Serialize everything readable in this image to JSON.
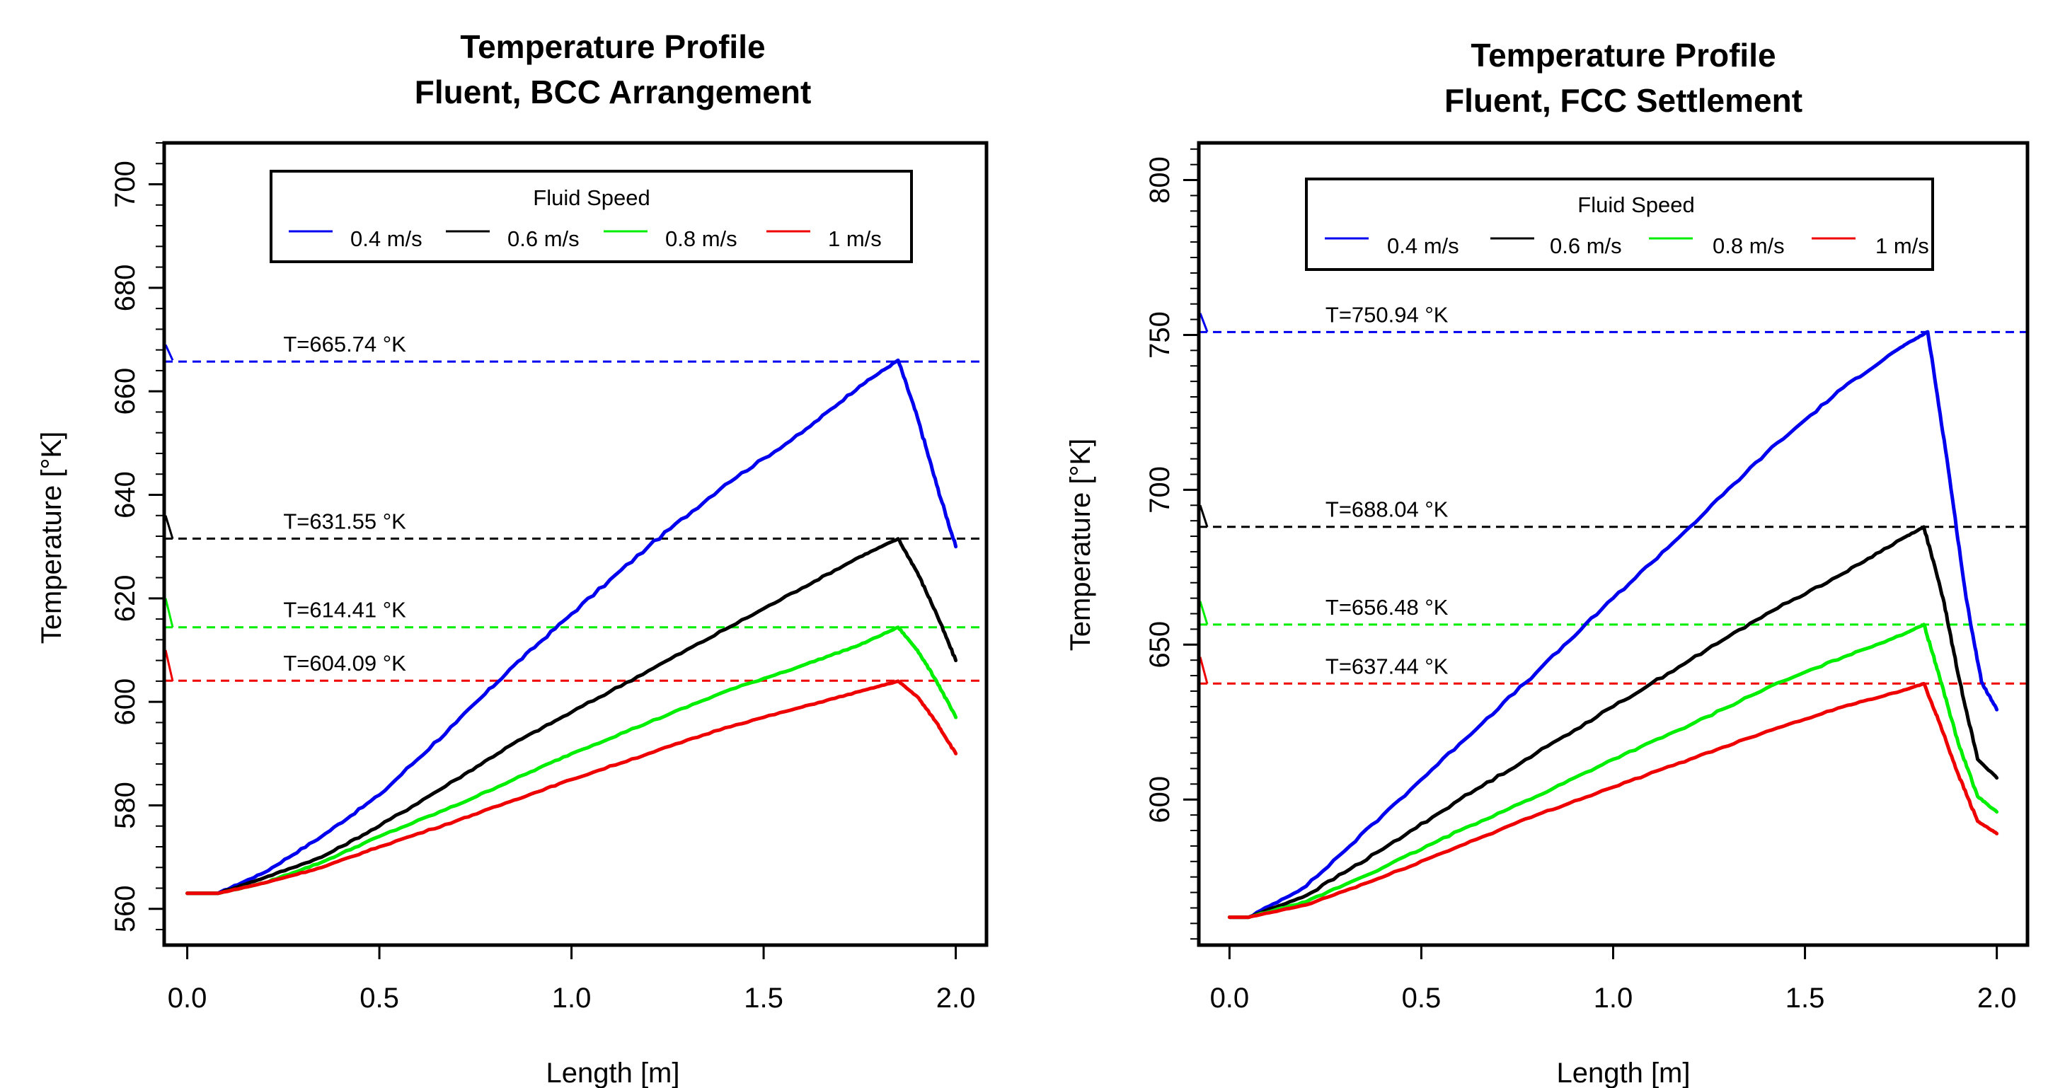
{
  "chart_data": [
    {
      "type": "line",
      "title": "Temperature Profile",
      "subtitle": "Fluent, BCC Arrangement",
      "xlabel": "Length [m]",
      "ylabel": "Temperature [°K]",
      "xlim": [
        -0.06,
        2.08
      ],
      "ylim": [
        553,
        708
      ],
      "x_ticks": [
        "0.0",
        "0.5",
        "1.0",
        "1.5",
        "2.0"
      ],
      "y_ticks": [
        "560",
        "580",
        "600",
        "620",
        "640",
        "660",
        "680",
        "700"
      ],
      "y_minor_step": 4,
      "legend": {
        "title": "Fluid Speed",
        "position": "top-center",
        "entries": [
          "0.4 m/s",
          "0.6 m/s",
          "0.8 m/s",
          "1 m/s"
        ]
      },
      "grid": false,
      "series": [
        {
          "name": "0.4 m/s",
          "color": "#0000ee",
          "x": [
            0,
            0.08,
            0.2,
            0.35,
            0.5,
            0.7,
            0.85,
            1.0,
            1.2,
            1.4,
            1.6,
            1.75,
            1.85,
            1.9,
            1.95,
            2.0
          ],
          "y": [
            563,
            563,
            567,
            574,
            582,
            596,
            607,
            617,
            630,
            642,
            652,
            661,
            666,
            655,
            642,
            630
          ]
        },
        {
          "name": "0.6 m/s",
          "color": "#000000",
          "x": [
            0,
            0.08,
            0.2,
            0.35,
            0.5,
            0.7,
            0.85,
            1.0,
            1.2,
            1.4,
            1.6,
            1.75,
            1.85,
            1.9,
            1.95,
            2.0
          ],
          "y": [
            563,
            563,
            566,
            570,
            576,
            585,
            592,
            598,
            606,
            614,
            622,
            628,
            631.5,
            625,
            617,
            608
          ]
        },
        {
          "name": "0.8 m/s",
          "color": "#00ee00",
          "x": [
            0,
            0.08,
            0.2,
            0.35,
            0.5,
            0.7,
            0.85,
            1.0,
            1.2,
            1.4,
            1.6,
            1.75,
            1.85,
            1.9,
            1.95,
            2.0
          ],
          "y": [
            563,
            563,
            565,
            569,
            574,
            580,
            585,
            590,
            596,
            602,
            607,
            611,
            614.4,
            610,
            604,
            597
          ]
        },
        {
          "name": "1 m/s",
          "color": "#ee0000",
          "x": [
            0,
            0.08,
            0.2,
            0.35,
            0.5,
            0.7,
            0.85,
            1.0,
            1.2,
            1.4,
            1.6,
            1.75,
            1.85,
            1.9,
            1.95,
            2.0
          ],
          "y": [
            563,
            563,
            565,
            568,
            572,
            577,
            581,
            585,
            590,
            595,
            599,
            602,
            604,
            601,
            596,
            590
          ]
        }
      ],
      "reference_lines": [
        {
          "value": 665.74,
          "label": "T=665.74 °K",
          "color": "#0000ee"
        },
        {
          "value": 631.55,
          "label": "T=631.55 °K",
          "color": "#000000"
        },
        {
          "value": 614.41,
          "label": "T=614.41 °K",
          "color": "#00ee00"
        },
        {
          "value": 604.09,
          "label": "T=604.09 °K",
          "color": "#ee0000"
        }
      ],
      "edge_marks": [
        {
          "color": "#0000ee",
          "from": 669,
          "to": 666
        },
        {
          "color": "#000000",
          "from": 636,
          "to": 631.5
        },
        {
          "color": "#00ee00",
          "from": 620,
          "to": 614.4
        },
        {
          "color": "#ee0000",
          "from": 610,
          "to": 604
        }
      ]
    },
    {
      "type": "line",
      "title": "Temperature Profile",
      "subtitle": "Fluent, FCC Settlement",
      "xlabel": "Length [m]",
      "ylabel": "Temperature [°K]",
      "xlim": [
        -0.08,
        2.08
      ],
      "ylim": [
        553,
        812
      ],
      "x_ticks": [
        "0.0",
        "0.5",
        "1.0",
        "1.5",
        "2.0"
      ],
      "y_ticks": [
        "600",
        "650",
        "700",
        "750",
        "800"
      ],
      "y_minor_step": 5,
      "legend": {
        "title": "Fluid Speed",
        "position": "top-center",
        "entries": [
          "0.4 m/s",
          "0.6 m/s",
          "0.8 m/s",
          "1 m/s"
        ]
      },
      "grid": false,
      "series": [
        {
          "name": "0.4 m/s",
          "color": "#0000ee",
          "x": [
            0,
            0.05,
            0.2,
            0.4,
            0.6,
            0.8,
            1.0,
            1.2,
            1.4,
            1.6,
            1.75,
            1.82,
            1.87,
            1.92,
            1.96,
            2.0
          ],
          "y": [
            562,
            562,
            572,
            595,
            618,
            641,
            665,
            688,
            712,
            733,
            746,
            751,
            710,
            665,
            638,
            629
          ]
        },
        {
          "name": "0.6 m/s",
          "color": "#000000",
          "x": [
            0,
            0.05,
            0.2,
            0.4,
            0.6,
            0.8,
            1.0,
            1.2,
            1.4,
            1.6,
            1.75,
            1.81,
            1.86,
            1.9,
            1.95,
            2.0
          ],
          "y": [
            562,
            562,
            569,
            584,
            600,
            615,
            630,
            645,
            660,
            673,
            684,
            688,
            665,
            640,
            613,
            607
          ]
        },
        {
          "name": "0.8 m/s",
          "color": "#00ee00",
          "x": [
            0,
            0.05,
            0.2,
            0.4,
            0.6,
            0.8,
            1.0,
            1.2,
            1.4,
            1.6,
            1.75,
            1.81,
            1.85,
            1.9,
            1.95,
            2.0
          ],
          "y": [
            562,
            562,
            567,
            578,
            590,
            601,
            613,
            624,
            636,
            646,
            653,
            656.5,
            640,
            618,
            601,
            596
          ]
        },
        {
          "name": "1 m/s",
          "color": "#ee0000",
          "x": [
            0,
            0.05,
            0.2,
            0.4,
            0.6,
            0.8,
            1.0,
            1.2,
            1.4,
            1.6,
            1.75,
            1.81,
            1.85,
            1.9,
            1.95,
            2.0
          ],
          "y": [
            562,
            562,
            566,
            575,
            585,
            595,
            604,
            613,
            622,
            630,
            635,
            637.4,
            625,
            608,
            593,
            589
          ]
        }
      ],
      "reference_lines": [
        {
          "value": 750.94,
          "label": "T=750.94 °K",
          "color": "#0000ee"
        },
        {
          "value": 688.04,
          "label": "T=688.04 °K",
          "color": "#000000"
        },
        {
          "value": 656.48,
          "label": "T=656.48 °K",
          "color": "#00ee00"
        },
        {
          "value": 637.44,
          "label": "T=637.44 °K",
          "color": "#ee0000"
        }
      ],
      "edge_marks": [
        {
          "color": "#0000ee",
          "from": 757,
          "to": 751
        },
        {
          "color": "#000000",
          "from": 695,
          "to": 688
        },
        {
          "color": "#00ee00",
          "from": 664,
          "to": 656.5
        },
        {
          "color": "#ee0000",
          "from": 646,
          "to": 637.4
        }
      ]
    }
  ]
}
